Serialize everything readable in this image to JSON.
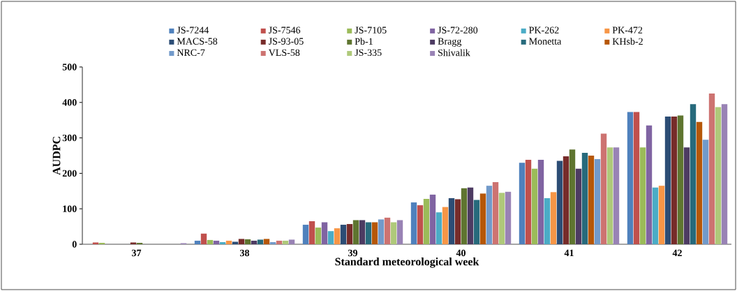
{
  "chart_data": {
    "type": "bar",
    "xlabel": "Standard meteorological week",
    "ylabel": "AUDPC",
    "categories": [
      "37",
      "38",
      "39",
      "40",
      "41",
      "42"
    ],
    "ylim": [
      0,
      500
    ],
    "yticks": [
      0,
      100,
      200,
      300,
      400,
      500
    ],
    "legend": "top",
    "series": [
      {
        "name": "JS-7244",
        "color": "#4f81bd",
        "values": [
          0,
          10,
          55,
          118,
          230,
          373
        ]
      },
      {
        "name": "JS-7546",
        "color": "#c0504d",
        "values": [
          5,
          30,
          65,
          110,
          238,
          373
        ]
      },
      {
        "name": "JS-7105",
        "color": "#9bbb59",
        "values": [
          4,
          12,
          47,
          128,
          213,
          273
        ]
      },
      {
        "name": "JS-72-280",
        "color": "#8064a2",
        "values": [
          0,
          10,
          62,
          140,
          238,
          335
        ]
      },
      {
        "name": "PK-262",
        "color": "#4bacc6",
        "values": [
          0,
          6,
          37,
          90,
          130,
          160
        ]
      },
      {
        "name": "PK-472",
        "color": "#f79646",
        "values": [
          0,
          10,
          45,
          105,
          147,
          165
        ]
      },
      {
        "name": "MACS-58",
        "color": "#2c4d75",
        "values": [
          0,
          7,
          55,
          130,
          235,
          360
        ]
      },
      {
        "name": "JS-93-05",
        "color": "#772c2a",
        "values": [
          5,
          15,
          57,
          127,
          248,
          360
        ]
      },
      {
        "name": "Pb-1",
        "color": "#5f7530",
        "values": [
          4,
          14,
          68,
          158,
          267,
          363
        ]
      },
      {
        "name": "Bragg",
        "color": "#4d3b62",
        "values": [
          0,
          10,
          68,
          160,
          213,
          273
        ]
      },
      {
        "name": "Monetta",
        "color": "#276a7c",
        "values": [
          0,
          13,
          62,
          125,
          258,
          395
        ]
      },
      {
        "name": "KHsb-2",
        "color": "#b65708",
        "values": [
          0,
          15,
          62,
          143,
          250,
          345
        ]
      },
      {
        "name": "NRC-7",
        "color": "#729aca",
        "values": [
          0,
          6,
          70,
          165,
          240,
          295
        ]
      },
      {
        "name": "VLS-58",
        "color": "#cd7371",
        "values": [
          0,
          10,
          75,
          175,
          312,
          425
        ]
      },
      {
        "name": "JS-335",
        "color": "#afc97a",
        "values": [
          0,
          10,
          62,
          145,
          273,
          387
        ]
      },
      {
        "name": "Shivalik",
        "color": "#9983b5",
        "values": [
          3,
          13,
          68,
          148,
          273,
          395
        ]
      }
    ]
  }
}
